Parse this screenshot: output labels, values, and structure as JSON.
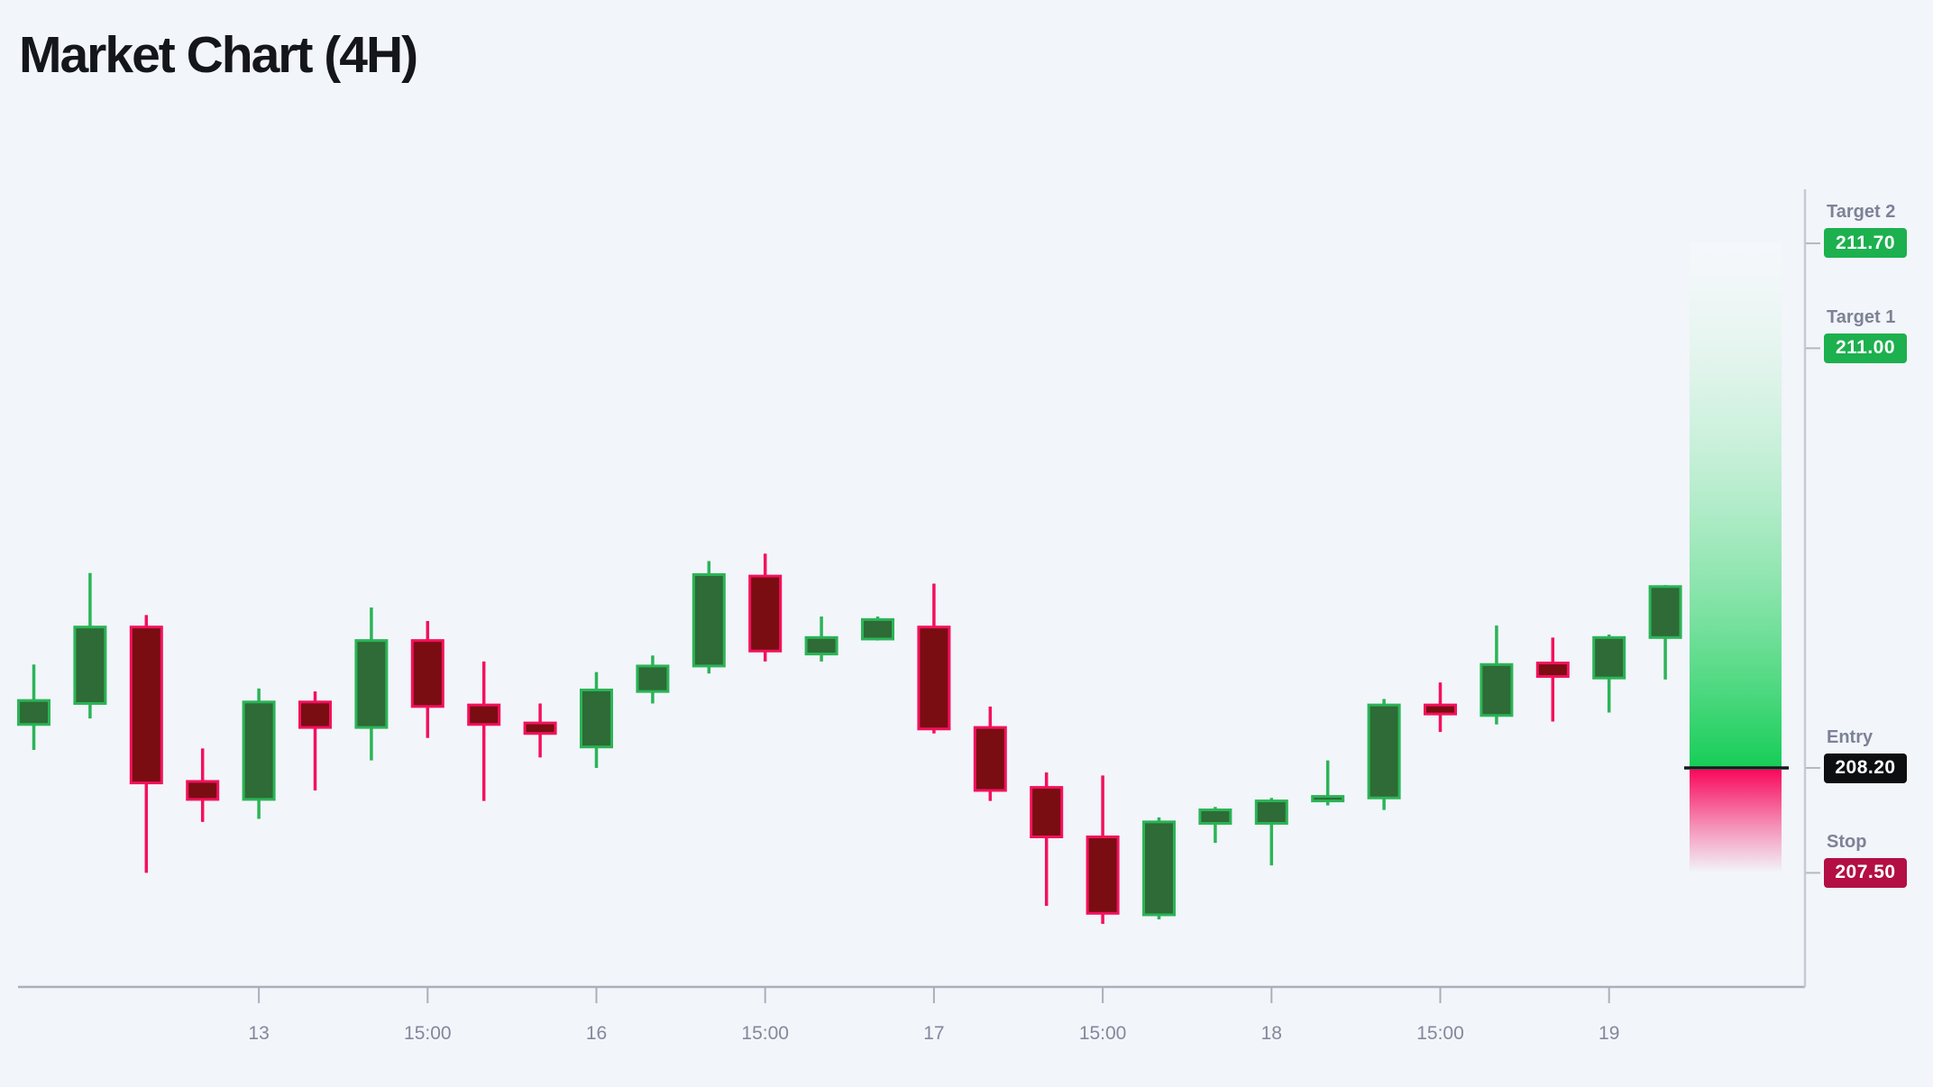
{
  "page": {
    "title": "Market Chart (4H)",
    "background": "#f2f5fa"
  },
  "chart_data": {
    "type": "candlestick",
    "title": "Market Chart (4H)",
    "timeframe": "4H",
    "ylim": [
      207.0,
      212.0
    ],
    "legend_position": "none",
    "grid": false,
    "x_axis": {
      "ticks": [
        {
          "candle_index": 4,
          "label": "13"
        },
        {
          "candle_index": 7,
          "label": "15:00"
        },
        {
          "candle_index": 10,
          "label": "16"
        },
        {
          "candle_index": 13,
          "label": "15:00"
        },
        {
          "candle_index": 16,
          "label": "17"
        },
        {
          "candle_index": 19,
          "label": "15:00"
        },
        {
          "candle_index": 22,
          "label": "18"
        },
        {
          "candle_index": 25,
          "label": "15:00"
        },
        {
          "candle_index": 28,
          "label": "19"
        }
      ]
    },
    "candles": [
      {
        "o": 208.49,
        "h": 208.89,
        "l": 208.32,
        "c": 208.65
      },
      {
        "o": 208.63,
        "h": 209.5,
        "l": 208.53,
        "c": 209.14
      },
      {
        "o": 209.14,
        "h": 209.22,
        "l": 207.5,
        "c": 208.1
      },
      {
        "o": 208.11,
        "h": 208.33,
        "l": 207.84,
        "c": 207.99
      },
      {
        "o": 207.99,
        "h": 208.73,
        "l": 207.86,
        "c": 208.64
      },
      {
        "o": 208.64,
        "h": 208.71,
        "l": 208.05,
        "c": 208.47
      },
      {
        "o": 208.47,
        "h": 209.27,
        "l": 208.25,
        "c": 209.05
      },
      {
        "o": 209.05,
        "h": 209.18,
        "l": 208.4,
        "c": 208.61
      },
      {
        "o": 208.62,
        "h": 208.91,
        "l": 207.98,
        "c": 208.49
      },
      {
        "o": 208.5,
        "h": 208.63,
        "l": 208.27,
        "c": 208.43
      },
      {
        "o": 208.34,
        "h": 208.84,
        "l": 208.2,
        "c": 208.72
      },
      {
        "o": 208.71,
        "h": 208.95,
        "l": 208.63,
        "c": 208.88
      },
      {
        "o": 208.88,
        "h": 209.58,
        "l": 208.83,
        "c": 209.49
      },
      {
        "o": 209.48,
        "h": 209.63,
        "l": 208.91,
        "c": 208.98
      },
      {
        "o": 208.96,
        "h": 209.21,
        "l": 208.91,
        "c": 209.07
      },
      {
        "o": 209.06,
        "h": 209.21,
        "l": 209.05,
        "c": 209.19
      },
      {
        "o": 209.14,
        "h": 209.43,
        "l": 208.43,
        "c": 208.46
      },
      {
        "o": 208.47,
        "h": 208.61,
        "l": 207.98,
        "c": 208.05
      },
      {
        "o": 208.07,
        "h": 208.17,
        "l": 207.28,
        "c": 207.74
      },
      {
        "o": 207.74,
        "h": 208.15,
        "l": 207.16,
        "c": 207.23
      },
      {
        "o": 207.22,
        "h": 207.87,
        "l": 207.19,
        "c": 207.84
      },
      {
        "o": 207.83,
        "h": 207.94,
        "l": 207.7,
        "c": 207.92
      },
      {
        "o": 207.83,
        "h": 208.0,
        "l": 207.55,
        "c": 207.98
      },
      {
        "o": 207.98,
        "h": 208.25,
        "l": 207.95,
        "c": 208.01
      },
      {
        "o": 208.0,
        "h": 208.66,
        "l": 207.92,
        "c": 208.62
      },
      {
        "o": 208.62,
        "h": 208.77,
        "l": 208.44,
        "c": 208.56
      },
      {
        "o": 208.55,
        "h": 209.15,
        "l": 208.49,
        "c": 208.89
      },
      {
        "o": 208.9,
        "h": 209.07,
        "l": 208.51,
        "c": 208.81
      },
      {
        "o": 208.8,
        "h": 209.09,
        "l": 208.57,
        "c": 209.07
      },
      {
        "o": 209.07,
        "h": 209.42,
        "l": 208.79,
        "c": 209.41
      }
    ],
    "levels": [
      {
        "id": "target-2",
        "name": "Target 2",
        "value": 211.7,
        "display": "211.70",
        "badge_color": "#1cb04e"
      },
      {
        "id": "target-1",
        "name": "Target 1",
        "value": 211.0,
        "display": "211.00",
        "badge_color": "#1cb04e"
      },
      {
        "id": "entry",
        "name": "Entry",
        "value": 208.2,
        "display": "208.20",
        "badge_color": "#0d0e12"
      },
      {
        "id": "stop",
        "name": "Stop",
        "value": 207.5,
        "display": "207.50",
        "badge_color": "#b30f44"
      }
    ],
    "zones": {
      "reward": {
        "from_level": "entry",
        "to_level": "target-2",
        "color": "#16cd57"
      },
      "risk": {
        "from_level": "stop",
        "to_level": "entry",
        "color": "#f8095c"
      }
    },
    "colors": {
      "up_border": "#2bb457",
      "up_fill": "#2e6b36",
      "down_border": "#f3115c",
      "down_fill": "#7a0d12",
      "axis_line": "#aab0bb",
      "tick_label": "#83889b",
      "entry_line": "#17191d",
      "level_label": "#7d8296",
      "badge_text": "#ffffff"
    }
  }
}
